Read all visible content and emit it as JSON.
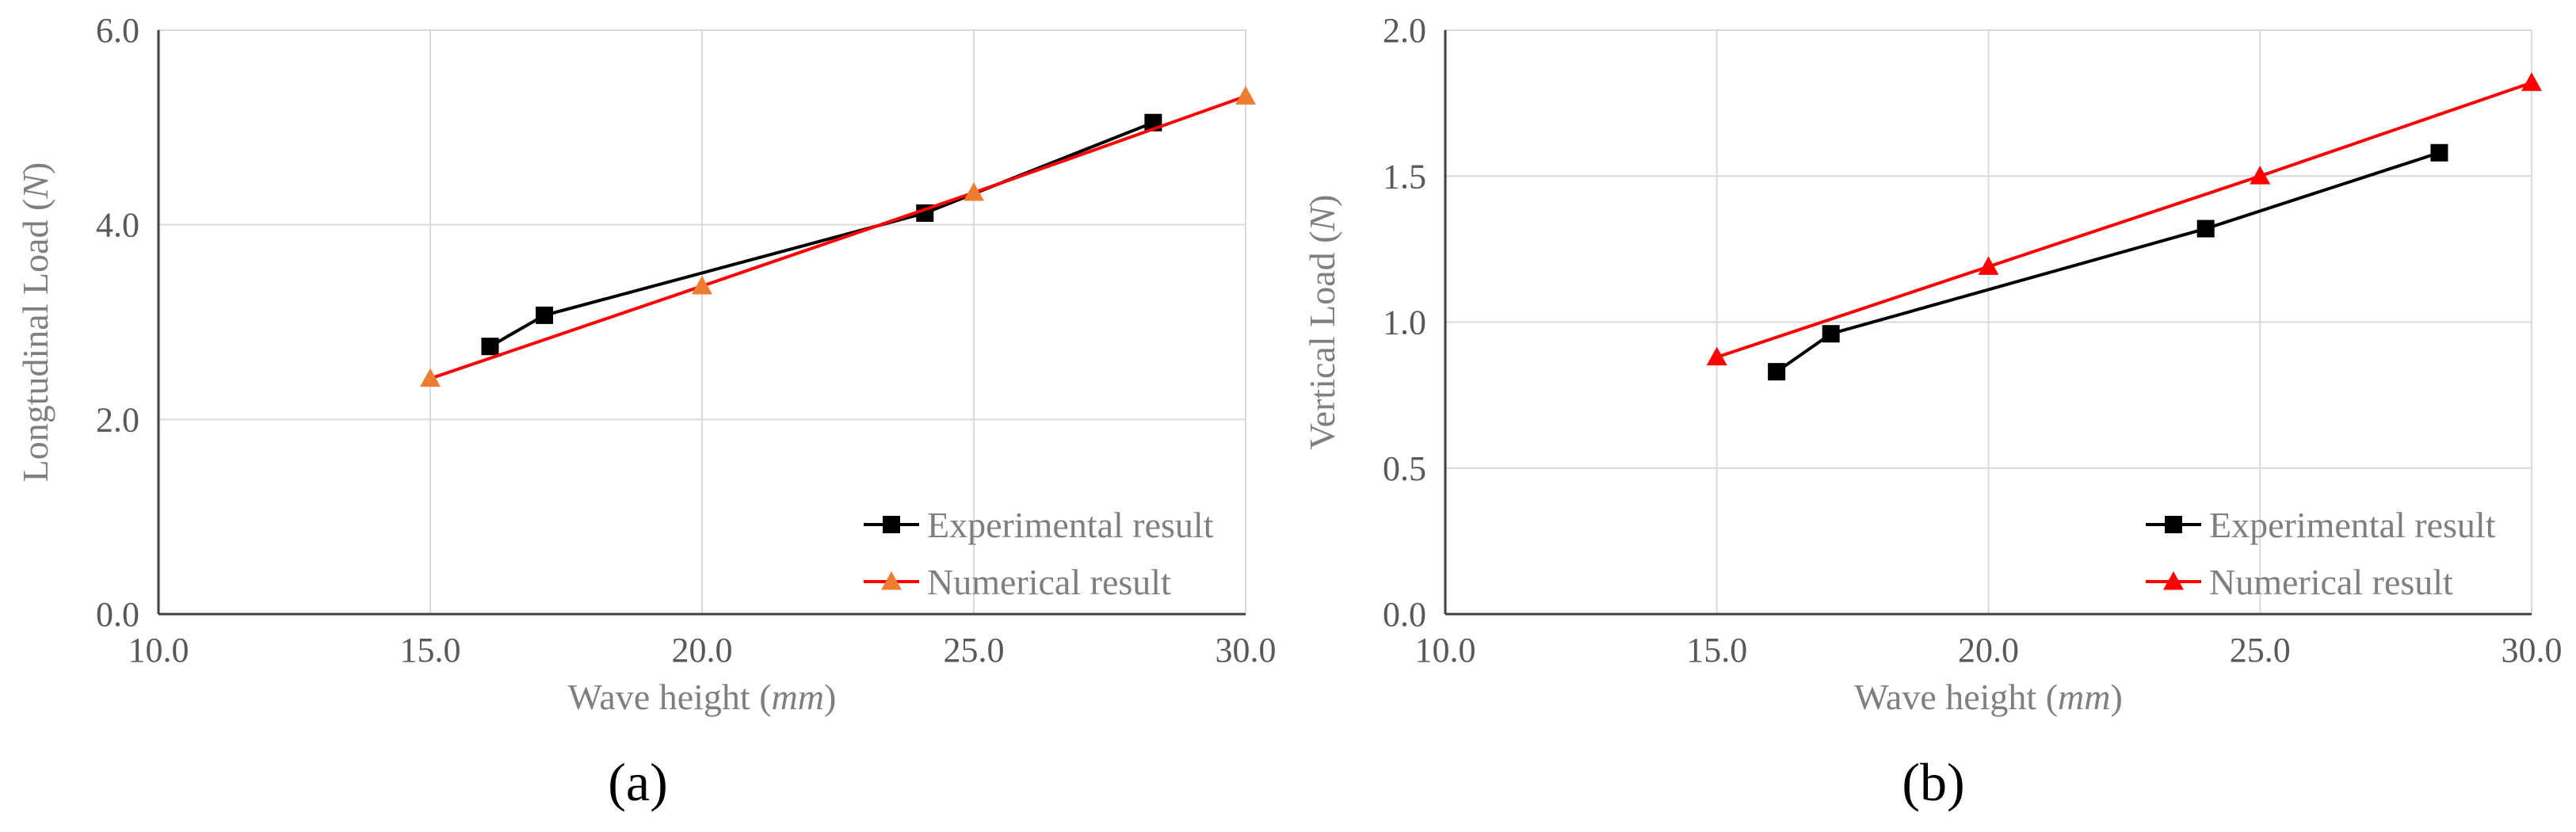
{
  "chart_data": [
    {
      "type": "line",
      "panel_label": "(a)",
      "title": "",
      "xlabel": "Wave height",
      "xlabel_unit": "mm",
      "ylabel": "Longtudinal Load",
      "ylabel_unit": "N",
      "xlim": [
        10.0,
        30.0
      ],
      "ylim": [
        0.0,
        6.0
      ],
      "xticks": [
        "10.0",
        "15.0",
        "20.0",
        "25.0",
        "30.0"
      ],
      "yticks": [
        "0.0",
        "2.0",
        "4.0",
        "6.0"
      ],
      "grid": true,
      "legend_position": "bottom-right",
      "series": [
        {
          "name": "Experimental result",
          "color": "#000000",
          "marker": "square",
          "x": [
            16.1,
            17.1,
            24.1,
            28.3
          ],
          "y": [
            2.75,
            3.07,
            4.12,
            5.05
          ]
        },
        {
          "name": "Numerical result",
          "color": "#ff0000",
          "marker_color": "#ed7d31",
          "marker": "triangle",
          "x": [
            15.0,
            20.0,
            25.0,
            30.0
          ],
          "y": [
            2.42,
            3.37,
            4.33,
            5.32
          ]
        }
      ]
    },
    {
      "type": "line",
      "panel_label": "(b)",
      "title": "",
      "xlabel": "Wave height",
      "xlabel_unit": "mm",
      "ylabel": "Vertical  Load",
      "ylabel_unit": "N",
      "xlim": [
        10.0,
        30.0
      ],
      "ylim": [
        0.0,
        2.0
      ],
      "xticks": [
        "10.0",
        "15.0",
        "20.0",
        "25.0",
        "30.0"
      ],
      "yticks": [
        "0.0",
        "0.5",
        "1.0",
        "1.5",
        "2.0"
      ],
      "grid": true,
      "legend_position": "bottom-right",
      "series": [
        {
          "name": "Experimental result",
          "color": "#000000",
          "marker": "square",
          "x": [
            16.1,
            17.1,
            24.0,
            28.3
          ],
          "y": [
            0.83,
            0.96,
            1.32,
            1.58
          ]
        },
        {
          "name": "Numerical result",
          "color": "#ff0000",
          "marker_color": "#ff0000",
          "marker": "triangle",
          "x": [
            15.0,
            20.0,
            25.0,
            30.0
          ],
          "y": [
            0.88,
            1.19,
            1.5,
            1.82
          ]
        }
      ]
    }
  ]
}
